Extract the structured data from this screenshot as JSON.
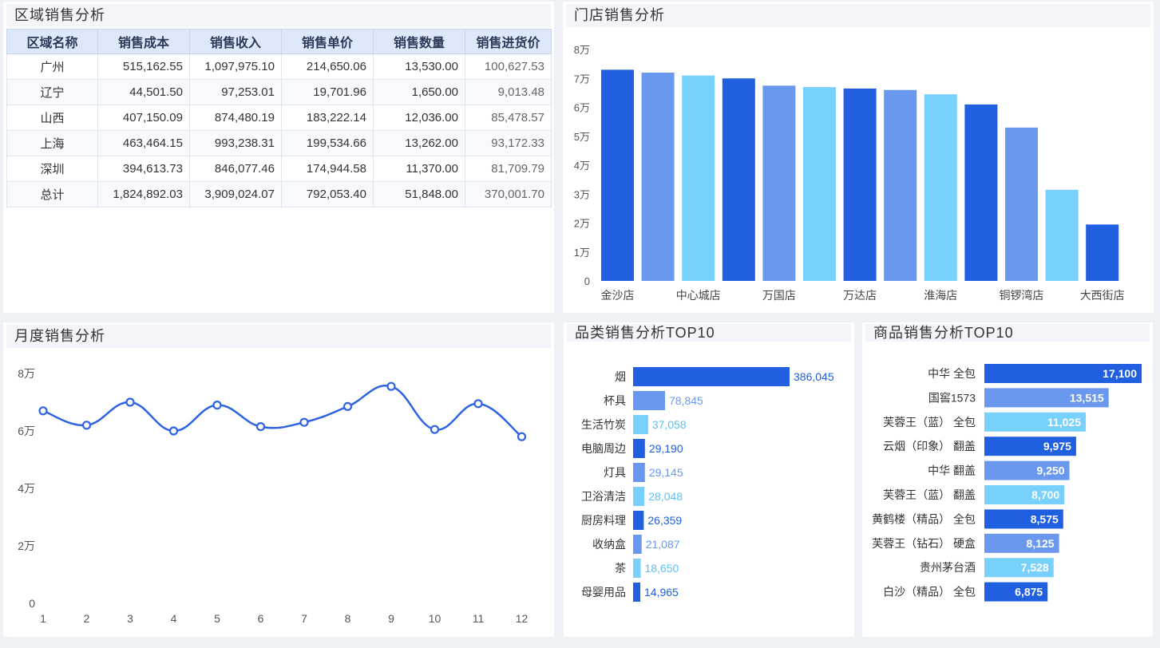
{
  "region": {
    "title": "区域销售分析",
    "headers": [
      "区域名称",
      "销售成本",
      "销售收入",
      "销售单价",
      "销售数量",
      "销售进货价"
    ],
    "rows": [
      [
        "广州",
        "515,162.55",
        "1,097,975.10",
        "214,650.06",
        "13,530.00",
        "100,627.53"
      ],
      [
        "辽宁",
        "44,501.50",
        "97,253.01",
        "19,701.96",
        "1,650.00",
        "9,013.48"
      ],
      [
        "山西",
        "407,150.09",
        "874,480.19",
        "183,222.14",
        "12,036.00",
        "85,478.57"
      ],
      [
        "上海",
        "463,464.15",
        "993,238.31",
        "199,534.66",
        "13,262.00",
        "93,172.33"
      ],
      [
        "深圳",
        "394,613.73",
        "846,077.46",
        "174,944.58",
        "11,370.00",
        "81,709.79"
      ],
      [
        "总计",
        "1,824,892.03",
        "3,909,024.07",
        "792,053.40",
        "51,848.00",
        "370,001.70"
      ]
    ]
  },
  "store": {
    "title": "门店销售分析",
    "yticks": [
      "0",
      "1万",
      "2万",
      "3万",
      "4万",
      "5万",
      "6万",
      "7万",
      "8万"
    ],
    "chart_data": {
      "type": "bar",
      "categories": [
        "金沙店",
        "",
        "中心城店",
        "",
        "万国店",
        "",
        "万达店",
        "",
        "淮海店",
        "",
        "铜锣湾店",
        "",
        "大西街店"
      ],
      "values": [
        73000,
        72000,
        71000,
        70000,
        67500,
        67000,
        66500,
        66000,
        64500,
        61000,
        53000,
        31500,
        19500
      ],
      "ylim": [
        0,
        80000
      ],
      "colors": [
        "#1f5fe0",
        "#6a98ee",
        "#78d0fc"
      ]
    }
  },
  "month": {
    "title": "月度销售分析",
    "yticks": [
      "0",
      "2万",
      "4万",
      "6万",
      "8万"
    ],
    "chart_data": {
      "type": "line",
      "x": [
        "1",
        "2",
        "3",
        "4",
        "5",
        "6",
        "7",
        "8",
        "9",
        "10",
        "11",
        "12"
      ],
      "values": [
        67000,
        62000,
        70000,
        60000,
        69000,
        61500,
        63000,
        68500,
        75500,
        60500,
        69500,
        58000
      ],
      "ylim": [
        0,
        80000
      ],
      "color": "#2d63e3"
    }
  },
  "category": {
    "title": "品类销售分析TOP10",
    "chart_data": {
      "type": "bar",
      "orientation": "horizontal",
      "categories": [
        "烟",
        "杯具",
        "生活竹炭",
        "电脑周边",
        "灯具",
        "卫浴清洁",
        "厨房料理",
        "收纳盒",
        "茶",
        "母婴用品"
      ],
      "values": [
        386045,
        78845,
        37058,
        29190,
        29145,
        28048,
        26359,
        21087,
        18650,
        14965
      ],
      "labels": [
        "386,045",
        "78,845",
        "37,058",
        "29,190",
        "29,145",
        "28,048",
        "26,359",
        "21,087",
        "18,650",
        "14,965"
      ]
    }
  },
  "product": {
    "title": "商品销售分析TOP10",
    "chart_data": {
      "type": "bar",
      "orientation": "horizontal",
      "categories": [
        "中华 全包",
        "国窖1573",
        "芙蓉王（蓝） 全包",
        "云烟（印象） 翻盖",
        "中华 翻盖",
        "芙蓉王（蓝） 翻盖",
        "黄鹤楼（精品） 全包",
        "芙蓉王（钻石） 硬盒",
        "贵州茅台酒",
        "白沙（精品） 全包"
      ],
      "values": [
        17100,
        13515,
        11025,
        9975,
        9250,
        8700,
        8575,
        8125,
        7528,
        6875
      ],
      "labels": [
        "17,100",
        "13,515",
        "11,025",
        "9,975",
        "9,250",
        "8,700",
        "8,575",
        "8,125",
        "7,528",
        "6,875"
      ]
    }
  }
}
